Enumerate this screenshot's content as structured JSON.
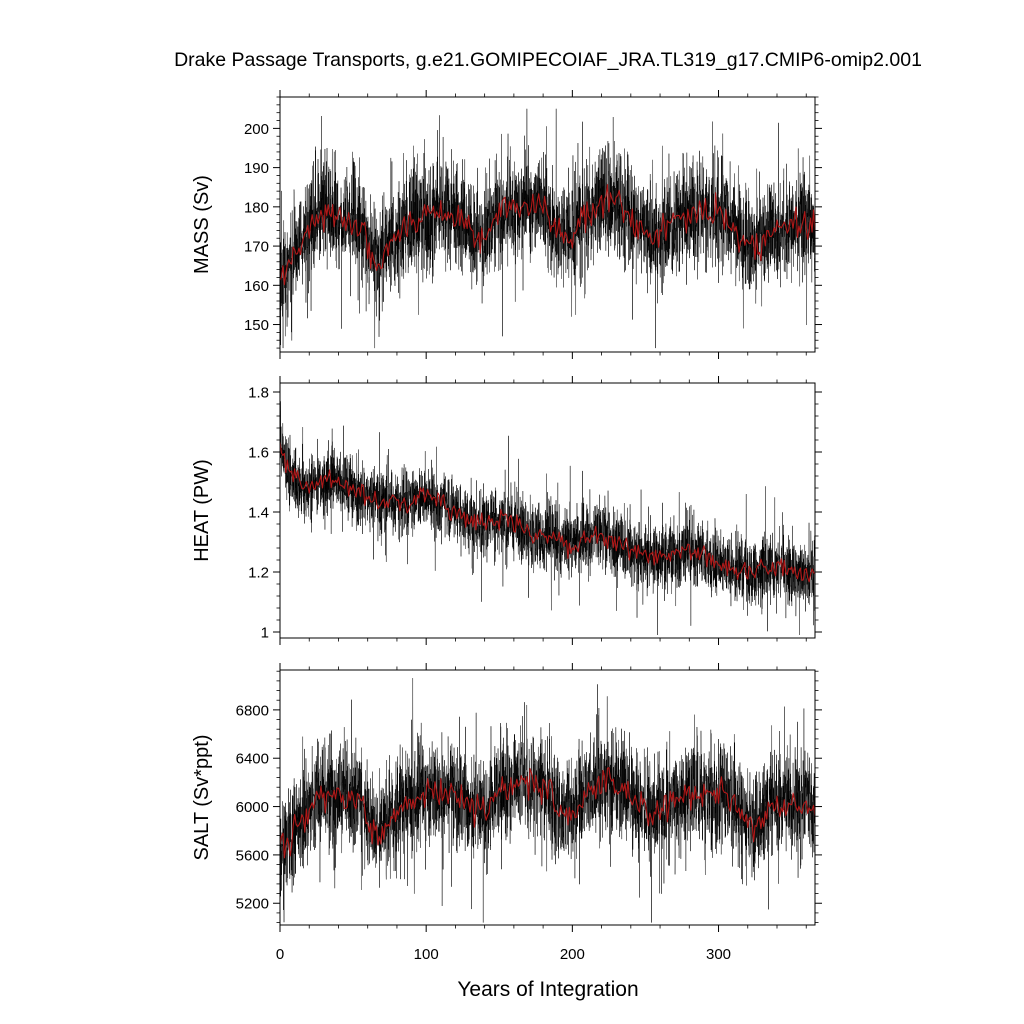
{
  "figure": {
    "title": "Drake Passage Transports, g.e21.GOMIPECOIAF_JRA.TL319_g17.CMIP6-omip2.001",
    "xlabel": "Years of Integration"
  },
  "colors": {
    "raw_series": "#000000",
    "smoothed_series": "#b01818",
    "axis": "#000000",
    "background": "#ffffff"
  },
  "chart_data": [
    {
      "type": "line",
      "ylabel": "MASS (Sv)",
      "xlim": [
        0,
        366
      ],
      "ylim": [
        143,
        208
      ],
      "x_ticks": [
        0,
        100,
        200,
        300
      ],
      "y_ticks": [
        150,
        160,
        170,
        180,
        190,
        200
      ],
      "grid": false,
      "series": [
        {
          "style": "raw monthly, thin black",
          "x_range": [
            0,
            366
          ],
          "trend": [
            [
              0,
              162
            ],
            [
              5,
              164
            ],
            [
              12,
              170
            ],
            [
              20,
              174
            ],
            [
              28,
              178
            ],
            [
              35,
              178
            ],
            [
              45,
              176
            ],
            [
              55,
              175
            ],
            [
              62,
              168
            ],
            [
              70,
              168
            ],
            [
              80,
              172
            ],
            [
              90,
              176
            ],
            [
              100,
              178
            ],
            [
              110,
              179
            ],
            [
              120,
              178
            ],
            [
              130,
              174
            ],
            [
              140,
              173
            ],
            [
              150,
              178
            ],
            [
              160,
              180
            ],
            [
              170,
              181
            ],
            [
              180,
              180
            ],
            [
              190,
              174
            ],
            [
              200,
              172
            ],
            [
              210,
              178
            ],
            [
              220,
              181
            ],
            [
              235,
              180
            ],
            [
              245,
              176
            ],
            [
              255,
              172
            ],
            [
              265,
              175
            ],
            [
              275,
              178
            ],
            [
              290,
              178
            ],
            [
              305,
              178
            ],
            [
              315,
              172
            ],
            [
              325,
              170
            ],
            [
              335,
              174
            ],
            [
              350,
              175
            ],
            [
              366,
              175
            ]
          ],
          "noise_sd": 6.5,
          "min": 144,
          "max": 205
        },
        {
          "style": "smoothed, red",
          "x_range": [
            0,
            366
          ],
          "trend": [
            [
              0,
              162
            ],
            [
              5,
              164
            ],
            [
              12,
              170
            ],
            [
              20,
              174
            ],
            [
              28,
              178
            ],
            [
              35,
              178
            ],
            [
              45,
              176
            ],
            [
              55,
              175
            ],
            [
              62,
              168
            ],
            [
              70,
              168
            ],
            [
              80,
              172
            ],
            [
              90,
              176
            ],
            [
              100,
              178
            ],
            [
              110,
              179
            ],
            [
              120,
              178
            ],
            [
              130,
              174
            ],
            [
              140,
              173
            ],
            [
              150,
              178
            ],
            [
              160,
              180
            ],
            [
              170,
              181
            ],
            [
              180,
              180
            ],
            [
              190,
              174
            ],
            [
              200,
              172
            ],
            [
              210,
              178
            ],
            [
              220,
              181
            ],
            [
              235,
              180
            ],
            [
              245,
              176
            ],
            [
              255,
              172
            ],
            [
              265,
              175
            ],
            [
              275,
              178
            ],
            [
              290,
              178
            ],
            [
              305,
              178
            ],
            [
              315,
              172
            ],
            [
              325,
              170
            ],
            [
              335,
              174
            ],
            [
              350,
              175
            ],
            [
              366,
              175
            ]
          ],
          "noise_sd": 2.0
        }
      ]
    },
    {
      "type": "line",
      "ylabel": "HEAT (PW)",
      "xlim": [
        0,
        366
      ],
      "ylim": [
        0.98,
        1.83
      ],
      "x_ticks": [
        0,
        100,
        200,
        300
      ],
      "y_ticks": [
        1.0,
        1.2,
        1.4,
        1.6,
        1.8
      ],
      "grid": false,
      "series": [
        {
          "style": "raw monthly, thin black",
          "x_range": [
            0,
            366
          ],
          "trend": [
            [
              0,
              1.63
            ],
            [
              5,
              1.55
            ],
            [
              12,
              1.5
            ],
            [
              20,
              1.48
            ],
            [
              30,
              1.5
            ],
            [
              40,
              1.5
            ],
            [
              50,
              1.47
            ],
            [
              60,
              1.45
            ],
            [
              70,
              1.44
            ],
            [
              80,
              1.43
            ],
            [
              90,
              1.44
            ],
            [
              100,
              1.45
            ],
            [
              110,
              1.43
            ],
            [
              120,
              1.4
            ],
            [
              130,
              1.38
            ],
            [
              140,
              1.36
            ],
            [
              150,
              1.38
            ],
            [
              160,
              1.36
            ],
            [
              170,
              1.33
            ],
            [
              180,
              1.32
            ],
            [
              190,
              1.31
            ],
            [
              200,
              1.29
            ],
            [
              210,
              1.32
            ],
            [
              220,
              1.33
            ],
            [
              230,
              1.3
            ],
            [
              240,
              1.27
            ],
            [
              250,
              1.25
            ],
            [
              260,
              1.25
            ],
            [
              270,
              1.26
            ],
            [
              280,
              1.27
            ],
            [
              290,
              1.25
            ],
            [
              300,
              1.23
            ],
            [
              310,
              1.21
            ],
            [
              320,
              1.2
            ],
            [
              330,
              1.21
            ],
            [
              340,
              1.22
            ],
            [
              350,
              1.2
            ],
            [
              366,
              1.19
            ]
          ],
          "noise_sd": 0.055,
          "min": 0.99,
          "max": 1.81
        },
        {
          "style": "smoothed, red",
          "x_range": [
            0,
            366
          ],
          "trend": [
            [
              0,
              1.63
            ],
            [
              5,
              1.55
            ],
            [
              12,
              1.5
            ],
            [
              20,
              1.48
            ],
            [
              30,
              1.5
            ],
            [
              40,
              1.5
            ],
            [
              50,
              1.47
            ],
            [
              60,
              1.45
            ],
            [
              70,
              1.44
            ],
            [
              80,
              1.43
            ],
            [
              90,
              1.44
            ],
            [
              100,
              1.45
            ],
            [
              110,
              1.43
            ],
            [
              120,
              1.4
            ],
            [
              130,
              1.38
            ],
            [
              140,
              1.36
            ],
            [
              150,
              1.38
            ],
            [
              160,
              1.36
            ],
            [
              170,
              1.33
            ],
            [
              180,
              1.32
            ],
            [
              190,
              1.31
            ],
            [
              200,
              1.29
            ],
            [
              210,
              1.32
            ],
            [
              220,
              1.33
            ],
            [
              230,
              1.3
            ],
            [
              240,
              1.27
            ],
            [
              250,
              1.25
            ],
            [
              260,
              1.25
            ],
            [
              270,
              1.26
            ],
            [
              280,
              1.27
            ],
            [
              290,
              1.25
            ],
            [
              300,
              1.23
            ],
            [
              310,
              1.21
            ],
            [
              320,
              1.2
            ],
            [
              330,
              1.21
            ],
            [
              340,
              1.22
            ],
            [
              350,
              1.2
            ],
            [
              366,
              1.19
            ]
          ],
          "noise_sd": 0.018
        }
      ]
    },
    {
      "type": "line",
      "ylabel": "SALT (Sv*ppt)",
      "xlim": [
        0,
        366
      ],
      "ylim": [
        5020,
        7130
      ],
      "x_ticks": [
        0,
        100,
        200,
        300
      ],
      "y_ticks": [
        5200,
        5600,
        6000,
        6400,
        6800
      ],
      "grid": false,
      "series": [
        {
          "style": "raw monthly, thin black",
          "x_range": [
            0,
            366
          ],
          "trend": [
            [
              0,
              5650
            ],
            [
              5,
              5700
            ],
            [
              12,
              5850
            ],
            [
              20,
              5980
            ],
            [
              28,
              6120
            ],
            [
              35,
              6120
            ],
            [
              45,
              6060
            ],
            [
              55,
              6040
            ],
            [
              62,
              5820
            ],
            [
              70,
              5800
            ],
            [
              80,
              5950
            ],
            [
              90,
              6060
            ],
            [
              100,
              6110
            ],
            [
              110,
              6150
            ],
            [
              120,
              6110
            ],
            [
              130,
              5980
            ],
            [
              140,
              5960
            ],
            [
              150,
              6120
            ],
            [
              160,
              6180
            ],
            [
              170,
              6210
            ],
            [
              180,
              6180
            ],
            [
              190,
              5980
            ],
            [
              200,
              5920
            ],
            [
              210,
              6120
            ],
            [
              220,
              6200
            ],
            [
              235,
              6170
            ],
            [
              245,
              6040
            ],
            [
              255,
              5920
            ],
            [
              265,
              6010
            ],
            [
              275,
              6110
            ],
            [
              290,
              6110
            ],
            [
              305,
              6110
            ],
            [
              315,
              5930
            ],
            [
              325,
              5860
            ],
            [
              335,
              5980
            ],
            [
              350,
              6020
            ],
            [
              366,
              6020
            ]
          ],
          "noise_sd": 210,
          "min": 5040,
          "max": 7100
        },
        {
          "style": "smoothed, red",
          "x_range": [
            0,
            366
          ],
          "trend": [
            [
              0,
              5650
            ],
            [
              5,
              5700
            ],
            [
              12,
              5850
            ],
            [
              20,
              5980
            ],
            [
              28,
              6120
            ],
            [
              35,
              6120
            ],
            [
              45,
              6060
            ],
            [
              55,
              6040
            ],
            [
              62,
              5820
            ],
            [
              70,
              5800
            ],
            [
              80,
              5950
            ],
            [
              90,
              6060
            ],
            [
              100,
              6110
            ],
            [
              110,
              6150
            ],
            [
              120,
              6110
            ],
            [
              130,
              5980
            ],
            [
              140,
              5960
            ],
            [
              150,
              6120
            ],
            [
              160,
              6180
            ],
            [
              170,
              6210
            ],
            [
              180,
              6180
            ],
            [
              190,
              5980
            ],
            [
              200,
              5920
            ],
            [
              210,
              6120
            ],
            [
              220,
              6200
            ],
            [
              235,
              6170
            ],
            [
              245,
              6040
            ],
            [
              255,
              5920
            ],
            [
              265,
              6010
            ],
            [
              275,
              6110
            ],
            [
              290,
              6110
            ],
            [
              305,
              6110
            ],
            [
              315,
              5930
            ],
            [
              325,
              5860
            ],
            [
              335,
              5980
            ],
            [
              350,
              6020
            ],
            [
              366,
              6020
            ]
          ],
          "noise_sd": 65
        }
      ]
    }
  ]
}
